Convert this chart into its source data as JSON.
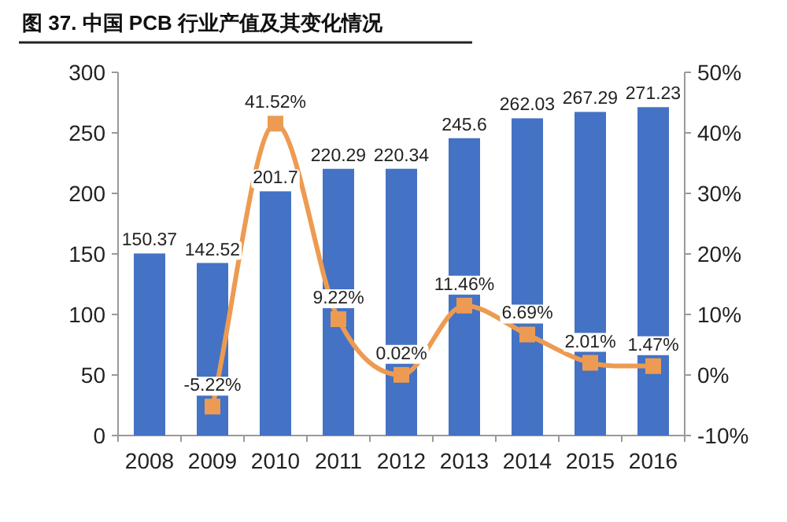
{
  "chart_data": {
    "type": "bar",
    "title": "图 37. 中国 PCB 行业产值及其变化情况",
    "categories": [
      "2008",
      "2009",
      "2010",
      "2011",
      "2012",
      "2013",
      "2014",
      "2015",
      "2016"
    ],
    "series": [
      {
        "color": "#4472c4",
        "values": [
          150.37,
          142.52,
          201.7,
          220.29,
          220.34,
          245.6,
          262.03,
          267.29,
          271.23
        ]
      },
      {
        "type": "line",
        "axis": "y2",
        "color": "#ed9b52",
        "marker": "square",
        "values": [
          null,
          -5.22,
          41.52,
          9.22,
          0.02,
          11.46,
          6.69,
          2.01,
          1.47
        ],
        "value_labels": [
          null,
          "-5.22%",
          "41.52%",
          "9.22%",
          "0.02%",
          "11.46%",
          "6.69%",
          "2.01%",
          "1.47%"
        ]
      }
    ],
    "data_labels": true,
    "ylim": [
      0,
      300
    ],
    "yticks": [
      0,
      50,
      100,
      150,
      200,
      250,
      300
    ],
    "y2lim": [
      -10,
      50
    ],
    "y2ticks": [
      {
        "value": -10,
        "label": "-10%"
      },
      {
        "value": 0,
        "label": "0%"
      },
      {
        "value": 10,
        "label": "10%"
      },
      {
        "value": 20,
        "label": "20%"
      },
      {
        "value": 30,
        "label": "30%"
      },
      {
        "value": 40,
        "label": "40%"
      },
      {
        "value": 50,
        "label": "50%"
      }
    ],
    "grid": false
  }
}
